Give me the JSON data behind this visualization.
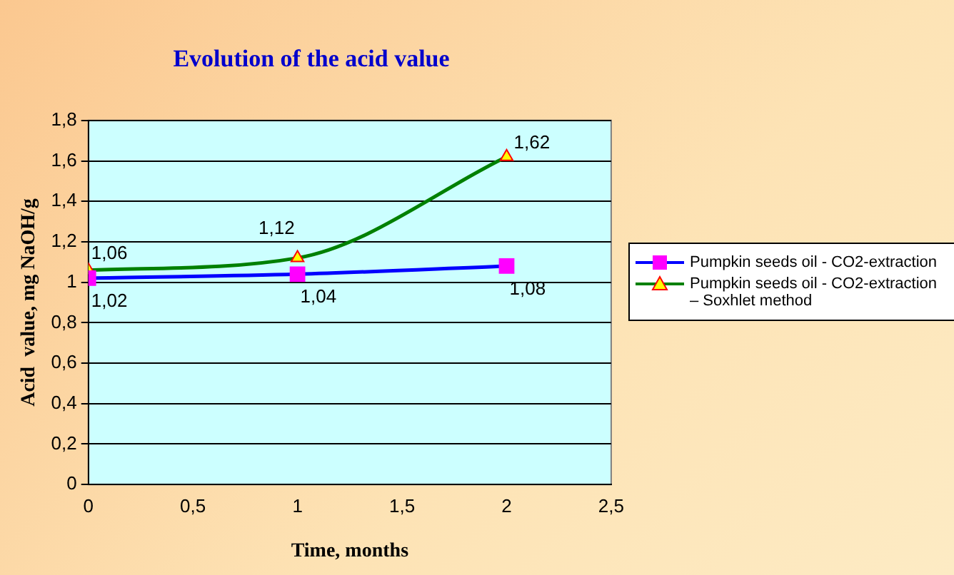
{
  "chart_data": {
    "type": "line",
    "title": "Evolution of the acid value",
    "xlabel": "Time, months",
    "ylabel": "Acid  value, mg NaOH/g",
    "x": [
      0,
      1,
      2
    ],
    "series": [
      {
        "name": "Pumpkin seeds oil - CO2-extraction",
        "color": "#0000ff",
        "marker": "square",
        "values": [
          1.02,
          1.04,
          1.08
        ],
        "value_labels": [
          "1,02",
          "1,04",
          "1,08"
        ]
      },
      {
        "name": "Pumpkin seeds oil - CO2-extraction – Soxhlet method",
        "color": "#008000",
        "marker": "triangle",
        "values": [
          1.06,
          1.12,
          1.62
        ],
        "value_labels": [
          "1,06",
          "1,12",
          "1,62"
        ]
      }
    ],
    "xlim": [
      0,
      2.5
    ],
    "xticks": [
      0,
      {
        "value": 0.5,
        "label": "0,5"
      },
      1,
      {
        "value": 1.5,
        "label": "1,5"
      },
      2,
      {
        "value": 2.5,
        "label": "2,5"
      }
    ],
    "ylim": [
      0,
      1.8
    ],
    "yticks": [
      0,
      {
        "value": 0.2,
        "label": "0,2"
      },
      {
        "value": 0.4,
        "label": "0,4"
      },
      {
        "value": 0.6,
        "label": "0,6"
      },
      {
        "value": 0.8,
        "label": "0,8"
      },
      1,
      {
        "value": 1.2,
        "label": "1,2"
      },
      {
        "value": 1.4,
        "label": "1,4"
      },
      {
        "value": 1.6,
        "label": "1,6"
      },
      {
        "value": 1.8,
        "label": "1,8"
      }
    ],
    "grid": "y",
    "legend": "right"
  }
}
